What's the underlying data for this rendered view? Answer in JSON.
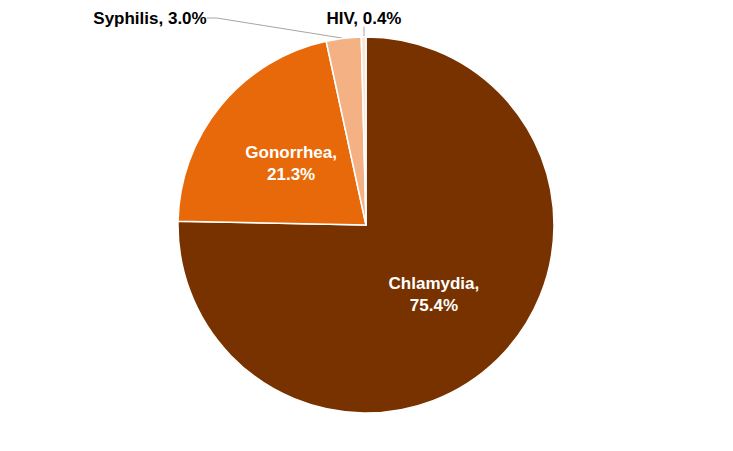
{
  "chart_data": {
    "type": "pie",
    "categories": [
      "Chlamydia",
      "Gonorrhea",
      "Syphilis",
      "HIV"
    ],
    "values": [
      75.4,
      21.3,
      3.0,
      0.4
    ],
    "value_labels": [
      "Chlamydia, 75.4%",
      "Gonorrhea, 21.3%",
      "Syphilis, 3.0%",
      "HIV, 0.4%"
    ],
    "colors": [
      "#773200",
      "#E8690A",
      "#F4B183",
      "#FBE5D6"
    ],
    "data_labels": true
  }
}
